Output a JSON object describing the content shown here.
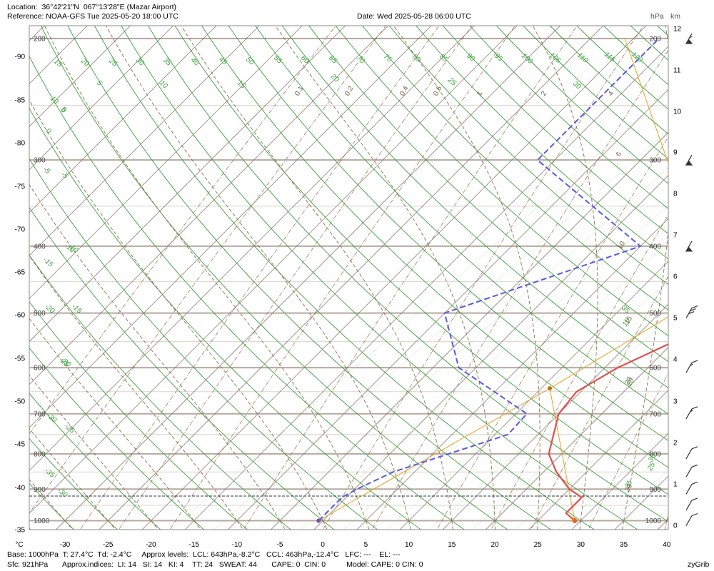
{
  "header": {
    "location": "Location:  36°42'21\"N  067°13'28\"E (Mazar Airport)",
    "reference": "Reference: NOAA-GFS Tue 2025-05-20 18:00 UTC",
    "date": "Date: Wed 2025-05-28 06:00 UTC",
    "unit_hpa": "hPa",
    "unit_km": "km"
  },
  "footer": {
    "line1": "Base: 1000hPa  T: 27.4°C  Td: -2.4°C     Approx levels:  LCL: 643hPa,-8.2°C   CCL: 463hPa,-12.4°C   LFC: ---    EL: ---",
    "line2": "Sfc: 921hPa       Approx.indices:  LI: 14   SI: 14   KI: 4    TT: 24   SWEAT: 44       CAPE: 0  CIN: 0          Model: CAPE: 0 CIN: 0",
    "credit": "zyGrib"
  },
  "colors": {
    "temperature": "#e05050",
    "dewpoint": "#5a5ae0",
    "parcel": "#e8a020",
    "dry_adiabat": "#3aa03a",
    "moist_adiabat": "#8a7050",
    "mixing_ratio": "#8a7050",
    "isobar": "#b8a8a0",
    "isotherm": "#7a6a60",
    "wind_barb": "#333333"
  },
  "chart_data": {
    "type": "skew-t log-p",
    "x_unit": "°C",
    "x_ticks": [
      "-30",
      "-25",
      "-20",
      "-15",
      "-10",
      "-5",
      "0",
      "5",
      "10",
      "15",
      "20",
      "25",
      "30",
      "35",
      "40"
    ],
    "left_ticks": [
      "-90",
      "-85",
      "-80",
      "-75",
      "-70",
      "-65",
      "-60",
      "-55",
      "-50",
      "-45",
      "-40",
      "-35"
    ],
    "pressure_levels": [
      "200",
      "300",
      "400",
      "500",
      "600",
      "700",
      "800",
      "900",
      "1000"
    ],
    "height_km": [
      "12",
      "11",
      "10",
      "9",
      "8",
      "7",
      "6",
      "5",
      "4",
      "3",
      "2",
      "1",
      "0"
    ],
    "dry_adiabat_labels": [
      "15",
      "20",
      "25",
      "30",
      "35",
      "40",
      "45",
      "50",
      "55",
      "60",
      "65",
      "70",
      "75",
      "80",
      "85",
      "90",
      "95",
      "100",
      "105",
      "110",
      "115",
      "120"
    ],
    "dry_adiabat_labels_left": [
      "10",
      "5",
      "0",
      "-5",
      "-10",
      "-15",
      "-20",
      "-25",
      "-30",
      "-35"
    ],
    "moist_adiabat_labels": [
      "10",
      "5",
      "0",
      "-5",
      "-10",
      "-15",
      "-20",
      "-25",
      "-30",
      "15",
      "20",
      "25",
      "30",
      "35"
    ],
    "moist_adiabat_labels_right": [
      "15",
      "20",
      "25",
      "30",
      "35"
    ],
    "mixing_ratio_labels": [
      "0.1",
      "0.2",
      "0.4",
      "0.6",
      "1",
      "2",
      "4",
      "6",
      "10",
      "15",
      "20",
      "30"
    ],
    "temperature_profile": [
      {
        "p": 1000,
        "t": 29.3
      },
      {
        "p": 975,
        "t": 27.4
      },
      {
        "p": 925,
        "t": 27.4
      },
      {
        "p": 900,
        "t": 25.0
      },
      {
        "p": 850,
        "t": 21.5
      },
      {
        "p": 800,
        "t": 18.5
      },
      {
        "p": 700,
        "t": 15.0
      },
      {
        "p": 650,
        "t": 14.5
      },
      {
        "p": 600,
        "t": 16.5
      },
      {
        "p": 550,
        "t": 20.0
      },
      {
        "p": 500,
        "t": 19.0
      },
      {
        "p": 400,
        "t": 14.0
      },
      {
        "p": 300,
        "t": 4.5
      },
      {
        "p": 250,
        "t": 5.0
      },
      {
        "p": 200,
        "t": 10.0
      }
    ],
    "dewpoint_profile": [
      {
        "p": 1000,
        "t": -0.5
      },
      {
        "p": 925,
        "t": -0.5
      },
      {
        "p": 900,
        "t": 0.3
      },
      {
        "p": 850,
        "t": 2.5
      },
      {
        "p": 750,
        "t": 11.5
      },
      {
        "p": 700,
        "t": 11.3
      },
      {
        "p": 600,
        "t": -2.0
      },
      {
        "p": 500,
        "t": -10.0
      },
      {
        "p": 400,
        "t": 5.0
      },
      {
        "p": 300,
        "t": -17.0
      },
      {
        "p": 200,
        "t": -17.0
      }
    ],
    "parcel_dry": [
      {
        "p": 1000,
        "t": 29.3
      },
      {
        "p": 643,
        "t": 11.0
      }
    ],
    "parcel_dew": [
      {
        "p": 1000,
        "t": -0.5
      },
      {
        "p": 643,
        "t": 11.0
      }
    ],
    "parcel_moist": [
      {
        "p": 643,
        "t": 11.0
      },
      {
        "p": 463,
        "t": 18.5
      },
      {
        "p": 200,
        "t": -21.0
      }
    ],
    "surface_pressure": 921,
    "wind_barbs": [
      {
        "p": 1000,
        "speed_kt": 10
      },
      {
        "p": 950,
        "speed_kt": 10
      },
      {
        "p": 900,
        "speed_kt": 10
      },
      {
        "p": 850,
        "speed_kt": 10
      },
      {
        "p": 800,
        "speed_kt": 10
      },
      {
        "p": 700,
        "speed_kt": 15
      },
      {
        "p": 600,
        "speed_kt": 15
      },
      {
        "p": 500,
        "speed_kt": 30
      },
      {
        "p": 400,
        "speed_kt": 50
      },
      {
        "p": 300,
        "speed_kt": 50
      },
      {
        "p": 200,
        "speed_kt": 55
      }
    ]
  }
}
